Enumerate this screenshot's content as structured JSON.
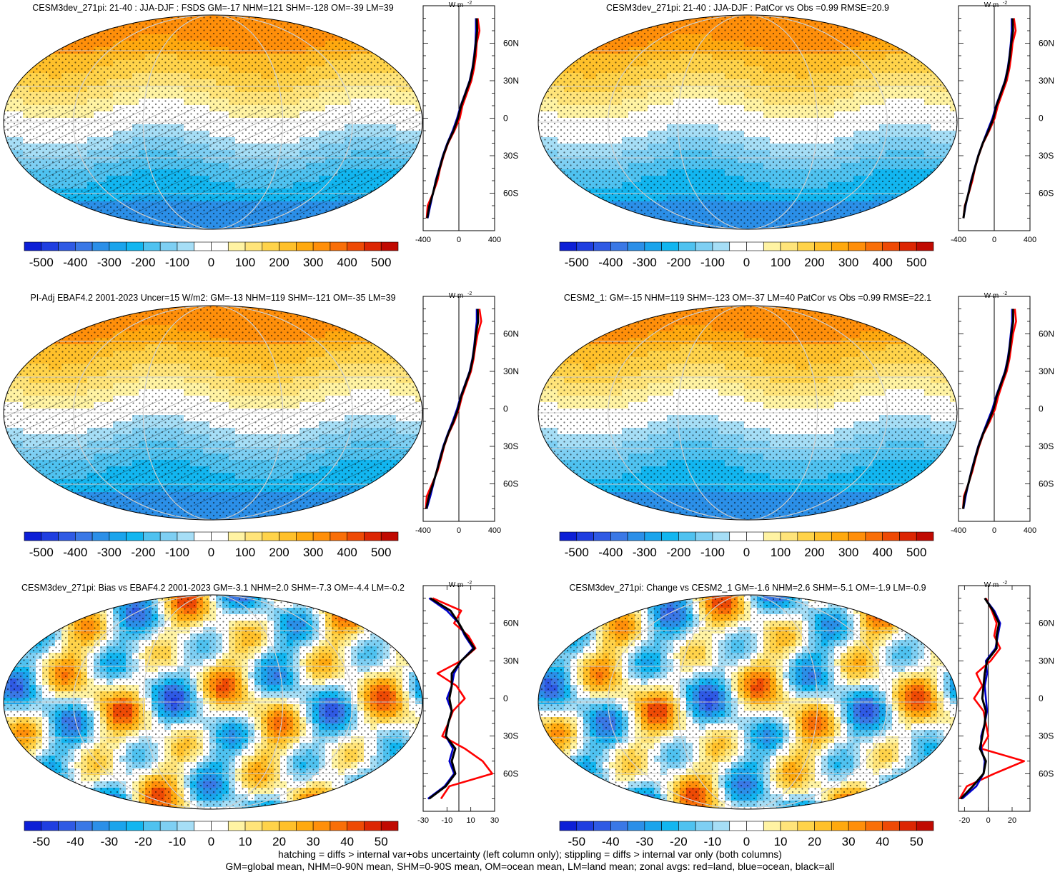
{
  "chart_data": [
    {
      "type": "heatmap",
      "title": "CESM3dev_271pi: 21-40 : JJA-DJF : FSDS GM=-17 NHM=121 SHM=-128 OM=-39 LM=39",
      "colorbar": {
        "ticks": [
          "-500",
          "-400",
          "-300",
          "-200",
          "-100",
          "0",
          "100",
          "200",
          "300",
          "400",
          "500"
        ],
        "range": [
          -550,
          550
        ]
      },
      "zonal_avg": {
        "units": "W m",
        "units_exp": "-2",
        "x_ticks": [
          "-400",
          "0",
          "400"
        ],
        "xlim": [
          -400,
          400
        ],
        "y_ticks": [
          "60N",
          "30N",
          "0",
          "30S",
          "60S"
        ],
        "lat": [
          80,
          70,
          60,
          50,
          40,
          30,
          20,
          10,
          0,
          -10,
          -20,
          -30,
          -40,
          -50,
          -60,
          -70,
          -80
        ],
        "series": [
          {
            "color": "#ff0000",
            "values": [
              210,
              230,
              200,
              190,
              170,
              140,
              90,
              40,
              10,
              -50,
              -120,
              -170,
              -210,
              -240,
              -290,
              -350,
              -360
            ]
          },
          {
            "color": "#0000cc",
            "values": [
              190,
              190,
              185,
              170,
              150,
              120,
              70,
              20,
              -20,
              -70,
              -130,
              -180,
              -220,
              -260,
              -290,
              -320,
              -350
            ]
          },
          {
            "color": "#000000",
            "values": [
              200,
              205,
              190,
              175,
              155,
              125,
              75,
              25,
              -10,
              -60,
              -125,
              -175,
              -215,
              -255,
              -290,
              -330,
              -355
            ]
          }
        ]
      }
    },
    {
      "type": "heatmap",
      "title": "CESM3dev_271pi: 21-40 : JJA-DJF : PatCor vs Obs =0.99 RMSE=20.9",
      "colorbar": {
        "ticks": [
          "-500",
          "-400",
          "-300",
          "-200",
          "-100",
          "0",
          "100",
          "200",
          "300",
          "400",
          "500"
        ],
        "range": [
          -550,
          550
        ]
      },
      "zonal_avg": {
        "units": "W m",
        "units_exp": "-2",
        "x_ticks": [
          "-400",
          "0",
          "400"
        ],
        "xlim": [
          -400,
          400
        ],
        "y_ticks": [
          "60N",
          "30N",
          "0",
          "30S",
          "60S"
        ],
        "lat": [
          80,
          70,
          60,
          50,
          40,
          30,
          20,
          10,
          0,
          -10,
          -20,
          -30,
          -40,
          -50,
          -60,
          -70,
          -80
        ],
        "series": [
          {
            "color": "#ff0000",
            "values": [
              220,
              240,
              205,
              190,
              170,
              140,
              90,
              40,
              5,
              -55,
              -125,
              -175,
              -215,
              -245,
              -285,
              -330,
              -345
            ]
          },
          {
            "color": "#0000cc",
            "values": [
              195,
              195,
              185,
              170,
              150,
              120,
              70,
              20,
              -20,
              -75,
              -130,
              -180,
              -220,
              -260,
              -290,
              -320,
              -345
            ]
          },
          {
            "color": "#000000",
            "values": [
              205,
              210,
              190,
              175,
              155,
              125,
              75,
              25,
              -10,
              -65,
              -128,
              -178,
              -218,
              -255,
              -288,
              -325,
              -345
            ]
          }
        ]
      }
    },
    {
      "type": "heatmap",
      "title": "PI-Adj EBAF4.2 2001-2023 Uncer=15 W/m2: GM=-13 NHM=119 SHM=-121 OM=-35 LM=39",
      "colorbar": {
        "ticks": [
          "-500",
          "-400",
          "-300",
          "-200",
          "-100",
          "0",
          "100",
          "200",
          "300",
          "400",
          "500"
        ],
        "range": [
          -550,
          550
        ]
      },
      "zonal_avg": {
        "units": "W m",
        "units_exp": "-2",
        "x_ticks": [
          "-400",
          "0",
          "400"
        ],
        "xlim": [
          -400,
          400
        ],
        "y_ticks": [
          "60N",
          "30N",
          "0",
          "30S",
          "60S"
        ],
        "lat": [
          80,
          70,
          60,
          50,
          40,
          30,
          20,
          10,
          0,
          -10,
          -20,
          -30,
          -40,
          -50,
          -60,
          -70,
          -80
        ],
        "series": [
          {
            "color": "#ff0000",
            "values": [
              230,
              250,
              210,
              185,
              165,
              135,
              85,
              35,
              0,
              -50,
              -115,
              -165,
              -200,
              -240,
              -300,
              -360,
              -370
            ]
          },
          {
            "color": "#0000cc",
            "values": [
              200,
              200,
              185,
              170,
              150,
              120,
              70,
              20,
              -20,
              -70,
              -125,
              -175,
              -215,
              -250,
              -285,
              -320,
              -360
            ]
          },
          {
            "color": "#000000",
            "values": [
              210,
              215,
              190,
              175,
              155,
              125,
              75,
              25,
              -10,
              -60,
              -120,
              -170,
              -210,
              -248,
              -290,
              -335,
              -365
            ]
          }
        ]
      }
    },
    {
      "type": "heatmap",
      "title": "CESM2_1: GM=-15 NHM=119 SHM=-123 OM=-37 LM=40 PatCor vs Obs =0.99 RMSE=22.1",
      "colorbar": {
        "ticks": [
          "-500",
          "-400",
          "-300",
          "-200",
          "-100",
          "0",
          "100",
          "200",
          "300",
          "400",
          "500"
        ],
        "range": [
          -550,
          550
        ]
      },
      "zonal_avg": {
        "units": "W m",
        "units_exp": "-2",
        "x_ticks": [
          "-400",
          "0",
          "400"
        ],
        "xlim": [
          -400,
          400
        ],
        "y_ticks": [
          "60N",
          "30N",
          "0",
          "30S",
          "60S"
        ],
        "lat": [
          80,
          70,
          60,
          50,
          40,
          30,
          20,
          10,
          0,
          -10,
          -20,
          -30,
          -40,
          -50,
          -60,
          -70,
          -80
        ],
        "series": [
          {
            "color": "#ff0000",
            "values": [
              230,
              245,
              210,
              190,
              170,
              140,
              90,
              45,
              10,
              -50,
              -120,
              -170,
              -210,
              -245,
              -290,
              -340,
              -350
            ]
          },
          {
            "color": "#0000cc",
            "values": [
              200,
              200,
              185,
              170,
              150,
              120,
              70,
              20,
              -20,
              -75,
              -130,
              -180,
              -220,
              -258,
              -290,
              -320,
              -345
            ]
          },
          {
            "color": "#000000",
            "values": [
              210,
              212,
              192,
              176,
              156,
              126,
              76,
              26,
              -8,
              -63,
              -126,
              -176,
              -216,
              -254,
              -290,
              -330,
              -348
            ]
          }
        ]
      }
    },
    {
      "type": "heatmap",
      "title": "CESM3dev_271pi: Bias vs EBAF4.2 2001-2023 GM=-3.1 NHM=2.0 SHM=-7.3 OM=-4.4 LM=-0.2",
      "colorbar": {
        "ticks": [
          "-50",
          "-40",
          "-30",
          "-20",
          "-10",
          "0",
          "10",
          "20",
          "30",
          "40",
          "50"
        ],
        "range": [
          -55,
          55
        ]
      },
      "zonal_avg": {
        "units": "W m",
        "units_exp": "-2",
        "x_ticks": [
          "-30",
          "-10",
          "10",
          "30"
        ],
        "xlim": [
          -30,
          30
        ],
        "y_ticks": [
          "60N",
          "30N",
          "0",
          "30S",
          "60S"
        ],
        "lat": [
          80,
          70,
          60,
          50,
          40,
          30,
          20,
          10,
          0,
          -10,
          -20,
          -30,
          -40,
          -50,
          -60,
          -70,
          -80
        ],
        "series": [
          {
            "color": "#ff0000",
            "values": [
              -22,
              2,
              -4,
              8,
              14,
              2,
              -18,
              -2,
              5,
              -5,
              -9,
              -14,
              5,
              20,
              28,
              -8,
              -15
            ]
          },
          {
            "color": "#0000cc",
            "values": [
              -25,
              -10,
              0,
              5,
              12,
              2,
              -4,
              -6,
              -10,
              -6,
              -9,
              -11,
              -5,
              -8,
              -4,
              -12,
              -26
            ]
          },
          {
            "color": "#000000",
            "values": [
              -24,
              -7,
              0,
              6,
              13,
              2,
              -6,
              -6,
              -8,
              -6,
              -9,
              -11,
              -3,
              -6,
              -3,
              -11,
              -25
            ]
          }
        ]
      }
    },
    {
      "type": "heatmap",
      "title": "CESM3dev_271pi: Change vs CESM2_1 GM=-1.6 NHM=2.6 SHM=-5.1 OM=-1.9 LM=-0.9",
      "colorbar": {
        "ticks": [
          "-50",
          "-40",
          "-30",
          "-20",
          "-10",
          "0",
          "10",
          "20",
          "30",
          "40",
          "50"
        ],
        "range": [
          -55,
          55
        ]
      },
      "zonal_avg": {
        "units": "W m",
        "units_exp": "-2",
        "x_ticks": [
          "-20",
          "0",
          "20"
        ],
        "xlim": [
          -25,
          35
        ],
        "y_ticks": [
          "60N",
          "30N",
          "0",
          "30S",
          "60S"
        ],
        "lat": [
          80,
          70,
          60,
          50,
          40,
          30,
          20,
          10,
          0,
          -10,
          -20,
          -30,
          -40,
          -50,
          -60,
          -70,
          -80
        ],
        "series": [
          {
            "color": "#ff0000",
            "values": [
              -2,
              3,
              7,
              5,
              10,
              2,
              -10,
              -5,
              -12,
              -4,
              -2,
              0,
              -6,
              30,
              5,
              -18,
              -24
            ]
          },
          {
            "color": "#0000cc",
            "values": [
              -3,
              5,
              10,
              8,
              6,
              -2,
              -1,
              -3,
              -2,
              -1,
              -3,
              -6,
              -6,
              -3,
              -4,
              -10,
              -22
            ]
          },
          {
            "color": "#000000",
            "values": [
              -3,
              4,
              9,
              7,
              7,
              -1,
              -3,
              -4,
              -5,
              -2,
              -3,
              -5,
              -7,
              -2,
              -4,
              -13,
              -23
            ]
          }
        ]
      }
    }
  ],
  "footnotes": [
    "hatching = diffs > internal var+obs uncertainty (left column only); stippling = diffs > internal var only (both columns)",
    "GM=global mean, NHM=0-90N mean, SHM=0-90S mean, OM=ocean mean, LM=land mean; zonal avgs: red=land, blue=ocean, black=all"
  ]
}
